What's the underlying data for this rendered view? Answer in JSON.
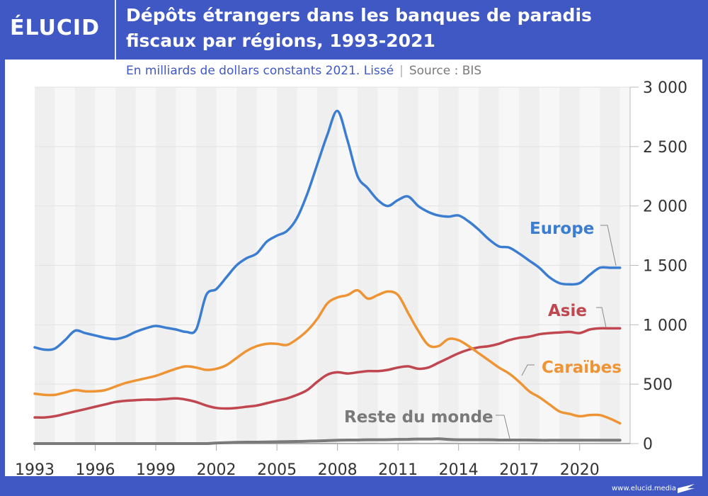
{
  "header": {
    "logo": "ÉLUCID",
    "title_line1": "Dépôts étrangers dans les banques de paradis",
    "title_line2": "fiscaux par régions, 1993-2021",
    "subtitle": "En milliards de dollars constants 2021. Lissé",
    "separator": "|",
    "source": "Source : BIS"
  },
  "footer": {
    "url": "www.elucid.media"
  },
  "chart_data": {
    "type": "line",
    "title": "Dépôts étrangers dans les banques de paradis fiscaux par régions, 1993-2021",
    "subtitle": "En milliards de dollars constants 2021. Lissé | Source : BIS",
    "xlabel": "",
    "ylabel": "",
    "xlim": [
      1993,
      2022.5
    ],
    "ylim": [
      0,
      3000
    ],
    "x_ticks": [
      1993,
      1996,
      1999,
      2002,
      2005,
      2008,
      2011,
      2014,
      2017,
      2020
    ],
    "x_tick_labels": [
      "1993",
      "1996",
      "1999",
      "2002",
      "2005",
      "2008",
      "2011",
      "2014",
      "2017",
      "2020"
    ],
    "y_ticks": [
      0,
      500,
      1000,
      1500,
      2000,
      2500,
      3000
    ],
    "y_tick_labels": [
      "0",
      "500",
      "1 000",
      "1 500",
      "2 000",
      "2 500",
      "3 000"
    ],
    "y_axis_side": "right",
    "grid": true,
    "legend": "inline-labels",
    "x": [
      1993,
      1993.5,
      1994,
      1994.5,
      1995,
      1995.5,
      1996,
      1996.5,
      1997,
      1997.5,
      1998,
      1998.5,
      1999,
      1999.5,
      2000,
      2000.5,
      2001,
      2001.5,
      2002,
      2002.5,
      2003,
      2003.5,
      2004,
      2004.5,
      2005,
      2005.5,
      2006,
      2006.5,
      2007,
      2007.5,
      2008,
      2008.5,
      2009,
      2009.5,
      2010,
      2010.5,
      2011,
      2011.5,
      2012,
      2012.5,
      2013,
      2013.5,
      2014,
      2014.5,
      2015,
      2015.5,
      2016,
      2016.5,
      2017,
      2017.5,
      2018,
      2018.5,
      2019,
      2019.5,
      2020,
      2020.5,
      2021,
      2021.5,
      2022
    ],
    "series": [
      {
        "name": "Europe",
        "color": "#3b7dd0",
        "values": [
          810,
          790,
          800,
          870,
          950,
          930,
          910,
          890,
          880,
          900,
          940,
          970,
          990,
          975,
          960,
          940,
          960,
          1250,
          1300,
          1400,
          1500,
          1560,
          1600,
          1700,
          1750,
          1790,
          1900,
          2100,
          2350,
          2600,
          2800,
          2550,
          2250,
          2150,
          2050,
          2000,
          2050,
          2080,
          2000,
          1950,
          1920,
          1910,
          1920,
          1870,
          1800,
          1720,
          1660,
          1650,
          1600,
          1540,
          1480,
          1400,
          1350,
          1340,
          1350,
          1420,
          1480,
          1480,
          1480
        ]
      },
      {
        "name": "Asie",
        "color": "#c0464f",
        "values": [
          220,
          220,
          230,
          250,
          270,
          290,
          310,
          330,
          350,
          360,
          365,
          370,
          370,
          375,
          380,
          370,
          350,
          320,
          300,
          295,
          300,
          310,
          320,
          340,
          360,
          380,
          410,
          450,
          520,
          580,
          600,
          590,
          600,
          610,
          610,
          620,
          640,
          650,
          630,
          640,
          680,
          720,
          760,
          790,
          810,
          820,
          840,
          870,
          890,
          900,
          920,
          930,
          935,
          940,
          930,
          960,
          970,
          970,
          970
        ]
      },
      {
        "name": "Caraïbes",
        "color": "#ee9434",
        "values": [
          420,
          410,
          410,
          430,
          450,
          440,
          440,
          450,
          480,
          510,
          530,
          550,
          570,
          600,
          630,
          650,
          640,
          620,
          630,
          660,
          720,
          780,
          820,
          840,
          840,
          830,
          880,
          950,
          1050,
          1180,
          1230,
          1250,
          1290,
          1220,
          1250,
          1280,
          1250,
          1100,
          950,
          830,
          820,
          880,
          870,
          820,
          760,
          700,
          640,
          590,
          520,
          440,
          390,
          330,
          270,
          250,
          230,
          240,
          240,
          210,
          170
        ]
      },
      {
        "name": "Reste du monde",
        "color": "#7a7a7a",
        "values": [
          0,
          0,
          0,
          0,
          0,
          0,
          0,
          0,
          0,
          0,
          0,
          0,
          0,
          0,
          0,
          0,
          0,
          0,
          5,
          8,
          10,
          12,
          12,
          14,
          15,
          16,
          18,
          20,
          22,
          25,
          28,
          30,
          30,
          32,
          32,
          33,
          35,
          36,
          38,
          38,
          40,
          35,
          32,
          32,
          32,
          32,
          30,
          30,
          30,
          30,
          28,
          28,
          28,
          28,
          28,
          28,
          28,
          28,
          28
        ]
      }
    ],
    "annotations": [
      {
        "text": "Europe",
        "series": "Europe",
        "color": "#3b7dd0"
      },
      {
        "text": "Asie",
        "series": "Asie",
        "color": "#c0464f"
      },
      {
        "text": "Caraïbes",
        "series": "Caraïbes",
        "color": "#ee9434"
      },
      {
        "text": "Reste du monde",
        "series": "Reste du monde",
        "color": "#7a7a7a"
      }
    ]
  }
}
